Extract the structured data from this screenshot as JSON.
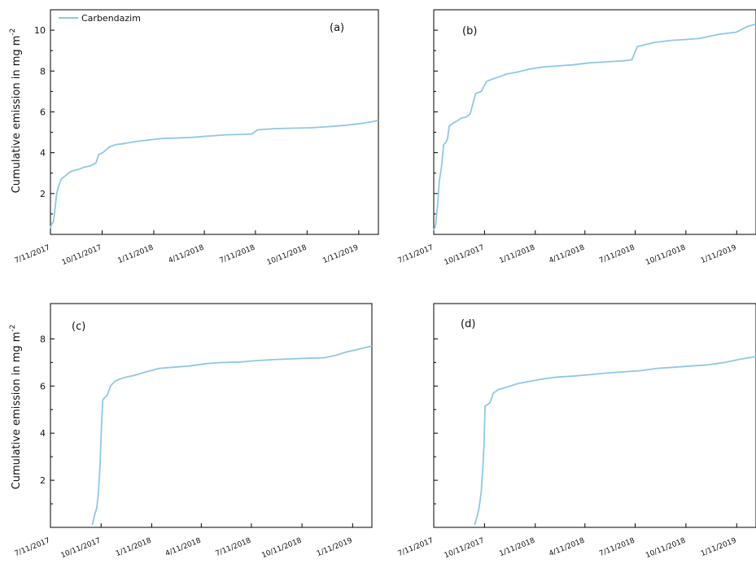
{
  "figure": {
    "ylabel_text": "Cumulative emission in mg m",
    "ylabel_sup": "-2",
    "legend_label": "Carbendazim",
    "line_color": "#8ec8e8"
  },
  "chart_data": [
    {
      "type": "line",
      "panel_label": "(a)",
      "ylabel": "Cumulative emission in mg m-2",
      "legend": [
        "Carbendazim"
      ],
      "legend_position": "top-left",
      "xlim": [
        "2017-07-11",
        "2019-02-15"
      ],
      "ylim": [
        0,
        11
      ],
      "yticks": [
        2,
        4,
        6,
        8,
        10
      ],
      "xtick_labels": [
        "7/11/2017",
        "10/11/2017",
        "1/11/2018",
        "4/11/2018",
        "7/11/2018",
        "10/11/2018",
        "1/11/2019"
      ],
      "xtick_dates": [
        "2017-07-11",
        "2017-10-11",
        "2018-01-11",
        "2018-04-11",
        "2018-07-11",
        "2018-10-11",
        "2019-01-11"
      ],
      "series": [
        {
          "name": "Carbendazim",
          "color": "#8ec8e8",
          "x": [
            "2017-07-11",
            "2017-07-13",
            "2017-07-16",
            "2017-07-19",
            "2017-07-22",
            "2017-07-26",
            "2017-07-30",
            "2017-08-03",
            "2017-08-06",
            "2017-08-12",
            "2017-08-18",
            "2017-08-25",
            "2017-09-01",
            "2017-09-10",
            "2017-09-20",
            "2017-09-30",
            "2017-10-05",
            "2017-10-12",
            "2017-10-25",
            "2017-11-05",
            "2017-11-20",
            "2017-12-10",
            "2018-01-01",
            "2018-01-25",
            "2018-02-20",
            "2018-03-20",
            "2018-04-20",
            "2018-05-20",
            "2018-06-20",
            "2018-07-05",
            "2018-07-15",
            "2018-08-15",
            "2018-09-15",
            "2018-10-20",
            "2018-11-20",
            "2018-12-20",
            "2019-01-20",
            "2019-02-10",
            "2019-02-15"
          ],
          "y": [
            0.3,
            0.5,
            0.6,
            1.2,
            2.0,
            2.4,
            2.7,
            2.8,
            2.85,
            3.0,
            3.1,
            3.15,
            3.2,
            3.3,
            3.35,
            3.5,
            3.9,
            4.0,
            4.3,
            4.4,
            4.45,
            4.55,
            4.62,
            4.7,
            4.72,
            4.75,
            4.82,
            4.88,
            4.9,
            4.92,
            5.12,
            5.18,
            5.2,
            5.22,
            5.28,
            5.35,
            5.45,
            5.55,
            5.6
          ]
        }
      ]
    },
    {
      "type": "line",
      "panel_label": "(b)",
      "ylabel": "",
      "xlim": [
        "2017-07-11",
        "2019-02-15"
      ],
      "ylim": [
        0,
        11
      ],
      "yticks": [
        2,
        4,
        6,
        8,
        10
      ],
      "xtick_labels": [
        "7/11/2017",
        "10/11/2017",
        "1/11/2018",
        "4/11/2018",
        "7/11/2018",
        "10/11/2018",
        "1/11/2019"
      ],
      "xtick_dates": [
        "2017-07-11",
        "2017-10-11",
        "2018-01-11",
        "2018-04-11",
        "2018-07-11",
        "2018-10-11",
        "2019-01-11"
      ],
      "series": [
        {
          "name": "Carbendazim",
          "color": "#8ec8e8",
          "x": [
            "2017-07-11",
            "2017-07-14",
            "2017-07-18",
            "2017-07-21",
            "2017-07-25",
            "2017-07-29",
            "2017-08-02",
            "2017-08-05",
            "2017-08-08",
            "2017-08-15",
            "2017-08-22",
            "2017-08-30",
            "2017-09-08",
            "2017-09-15",
            "2017-09-25",
            "2017-10-05",
            "2017-10-15",
            "2017-10-25",
            "2017-11-05",
            "2017-11-20",
            "2017-12-10",
            "2018-01-01",
            "2018-01-25",
            "2018-02-20",
            "2018-03-20",
            "2018-04-20",
            "2018-05-20",
            "2018-06-20",
            "2018-07-05",
            "2018-07-15",
            "2018-08-15",
            "2018-09-15",
            "2018-10-15",
            "2018-11-05",
            "2018-12-10",
            "2019-01-10",
            "2019-02-01",
            "2019-02-15"
          ],
          "y": [
            0.2,
            0.4,
            1.4,
            2.6,
            3.3,
            4.4,
            4.5,
            4.7,
            5.3,
            5.45,
            5.55,
            5.7,
            5.75,
            5.9,
            6.9,
            7.0,
            7.5,
            7.6,
            7.7,
            7.85,
            7.95,
            8.1,
            8.2,
            8.25,
            8.3,
            8.4,
            8.45,
            8.5,
            8.55,
            9.2,
            9.4,
            9.5,
            9.55,
            9.6,
            9.8,
            9.9,
            10.2,
            10.3
          ]
        }
      ]
    },
    {
      "type": "line",
      "panel_label": "(c)",
      "ylabel": "Cumulative emission in mg m-2",
      "xlim": [
        "2017-07-11",
        "2019-02-15"
      ],
      "ylim": [
        0,
        9.5
      ],
      "yticks": [
        2,
        4,
        6,
        8
      ],
      "xtick_labels": [
        "7/11/2017",
        "10/11/2017",
        "1/11/2018",
        "4/11/2018",
        "7/11/2018",
        "10/11/2018",
        "1/11/2019"
      ],
      "xtick_dates": [
        "2017-07-11",
        "2017-10-11",
        "2018-01-11",
        "2018-04-11",
        "2018-07-11",
        "2018-10-11",
        "2019-01-11"
      ],
      "series": [
        {
          "name": "Carbendazim",
          "color": "#8ec8e8",
          "x": [
            "2017-09-25",
            "2017-09-30",
            "2017-10-03",
            "2017-10-06",
            "2017-10-09",
            "2017-10-12",
            "2017-10-14",
            "2017-10-17",
            "2017-10-22",
            "2017-10-28",
            "2017-11-05",
            "2017-11-20",
            "2017-12-10",
            "2018-01-01",
            "2018-01-25",
            "2018-02-20",
            "2018-03-20",
            "2018-04-20",
            "2018-05-20",
            "2018-06-20",
            "2018-07-20",
            "2018-08-20",
            "2018-09-20",
            "2018-10-20",
            "2018-11-20",
            "2018-12-10",
            "2019-01-01",
            "2019-01-20",
            "2019-02-15"
          ],
          "y": [
            0.1,
            0.6,
            0.8,
            1.4,
            2.6,
            4.5,
            5.4,
            5.5,
            5.6,
            6.0,
            6.2,
            6.35,
            6.45,
            6.6,
            6.75,
            6.8,
            6.85,
            6.95,
            7.0,
            7.02,
            7.08,
            7.12,
            7.15,
            7.18,
            7.2,
            7.3,
            7.45,
            7.55,
            7.7
          ]
        }
      ]
    },
    {
      "type": "line",
      "panel_label": "(d)",
      "ylabel": "",
      "xlim": [
        "2017-07-11",
        "2019-02-15"
      ],
      "ylim": [
        0,
        9.5
      ],
      "yticks": [
        2,
        4,
        6,
        8
      ],
      "xtick_labels": [
        "7/11/2017",
        "10/11/2017",
        "1/11/2018",
        "4/11/2018",
        "7/11/2018",
        "10/11/2018",
        "1/11/2019"
      ],
      "xtick_dates": [
        "2017-07-11",
        "2017-10-11",
        "2018-01-11",
        "2018-04-11",
        "2018-07-11",
        "2018-10-11",
        "2019-01-11"
      ],
      "series": [
        {
          "name": "Carbendazim",
          "color": "#8ec8e8",
          "x": [
            "2017-09-23",
            "2017-09-28",
            "2017-10-01",
            "2017-10-05",
            "2017-10-08",
            "2017-10-10",
            "2017-10-12",
            "2017-10-16",
            "2017-10-21",
            "2017-10-27",
            "2017-11-05",
            "2017-11-20",
            "2017-12-10",
            "2018-01-01",
            "2018-01-25",
            "2018-02-20",
            "2018-03-20",
            "2018-04-20",
            "2018-05-20",
            "2018-06-20",
            "2018-07-20",
            "2018-08-20",
            "2018-09-20",
            "2018-10-20",
            "2018-11-20",
            "2018-12-20",
            "2019-01-20",
            "2019-02-15"
          ],
          "y": [
            0.1,
            0.5,
            0.8,
            1.5,
            2.5,
            3.5,
            5.15,
            5.2,
            5.3,
            5.7,
            5.85,
            5.95,
            6.1,
            6.2,
            6.3,
            6.38,
            6.42,
            6.48,
            6.55,
            6.6,
            6.65,
            6.75,
            6.8,
            6.85,
            6.9,
            7.0,
            7.15,
            7.25
          ]
        }
      ]
    }
  ]
}
